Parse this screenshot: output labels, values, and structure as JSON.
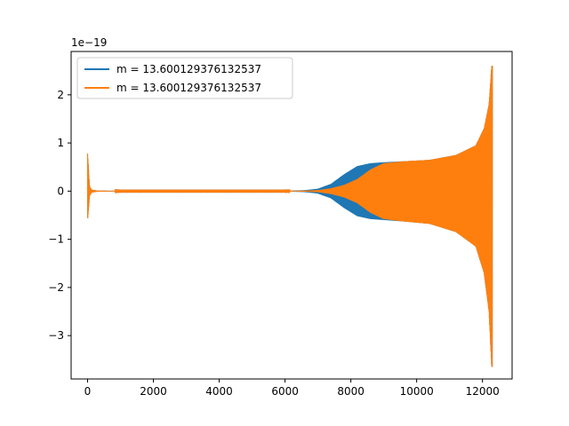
{
  "chart_data": {
    "type": "line",
    "title": "",
    "xlabel": "",
    "ylabel": "",
    "xlim": [
      -500,
      12900
    ],
    "ylim": [
      -3.9e-19,
      2.9e-19
    ],
    "y_offset_label": "1e−19",
    "x_ticks": [
      0,
      2000,
      4000,
      6000,
      8000,
      10000,
      12000
    ],
    "x_tick_labels": [
      "0",
      "2000",
      "4000",
      "6000",
      "8000",
      "10000",
      "12000"
    ],
    "y_ticks": [
      2,
      1,
      0,
      -1,
      -2,
      -3
    ],
    "y_tick_labels": [
      "2",
      "1",
      "0",
      "−1",
      "−2",
      "−3"
    ],
    "grid": false,
    "legend_position": "top-left",
    "series": [
      {
        "name": "m = 13.600129376132537",
        "color": "#1f77b4",
        "envelope": {
          "x": [
            0,
            60,
            120,
            300,
            1000,
            6000,
            6600,
            7000,
            7400,
            7800,
            8200,
            8600,
            9000,
            9600,
            10400,
            11200,
            11800,
            12050,
            12200,
            12280,
            12300
          ],
          "upper": [
            7.8e-20,
            1e-20,
            3e-21,
            1e-21,
            5e-22,
            5e-22,
            2e-21,
            5e-21,
            1.5e-20,
            3.5e-20,
            5.2e-20,
            5.8e-20,
            6e-20,
            6.2e-20,
            6.5e-20,
            7.5e-20,
            9.5e-20,
            1.3e-19,
            1.8e-19,
            2.6e-19,
            2.6e-19
          ],
          "lower": [
            -6e-20,
            -1e-20,
            -3e-21,
            -1e-21,
            -5e-22,
            -5e-22,
            -2e-21,
            -5e-21,
            -1.5e-20,
            -3.5e-20,
            -5.2e-20,
            -5.8e-20,
            -6e-20,
            -6.3e-20,
            -6.8e-20,
            -8.5e-20,
            -1.15e-19,
            -1.7e-19,
            -2.5e-19,
            -3.65e-19,
            -3.65e-19
          ]
        }
      },
      {
        "name": "m = 13.600129376132537",
        "color": "#ff7f0e",
        "envelope": {
          "x": [
            0,
            60,
            120,
            300,
            1000,
            6000,
            6600,
            7000,
            7400,
            7800,
            8200,
            8600,
            9000,
            9600,
            10400,
            11200,
            11800,
            12050,
            12200,
            12280,
            12300
          ],
          "upper": [
            7.8e-20,
            1e-20,
            3e-21,
            1e-21,
            5e-22,
            5e-22,
            1e-21,
            2e-21,
            6e-21,
            1.3e-20,
            2.5e-20,
            4.5e-20,
            5.8e-20,
            6.2e-20,
            6.5e-20,
            7.5e-20,
            9.5e-20,
            1.3e-19,
            1.8e-19,
            2.6e-19,
            2.6e-19
          ],
          "lower": [
            -6e-20,
            -1e-20,
            -3e-21,
            -1e-21,
            -5e-22,
            -5e-22,
            -1e-21,
            -2e-21,
            -6e-21,
            -1.3e-20,
            -2.5e-20,
            -4.5e-20,
            -5.8e-20,
            -6.3e-20,
            -6.8e-20,
            -8.5e-20,
            -1.15e-19,
            -1.7e-19,
            -2.5e-19,
            -3.65e-19,
            -3.65e-19
          ]
        }
      }
    ]
  }
}
